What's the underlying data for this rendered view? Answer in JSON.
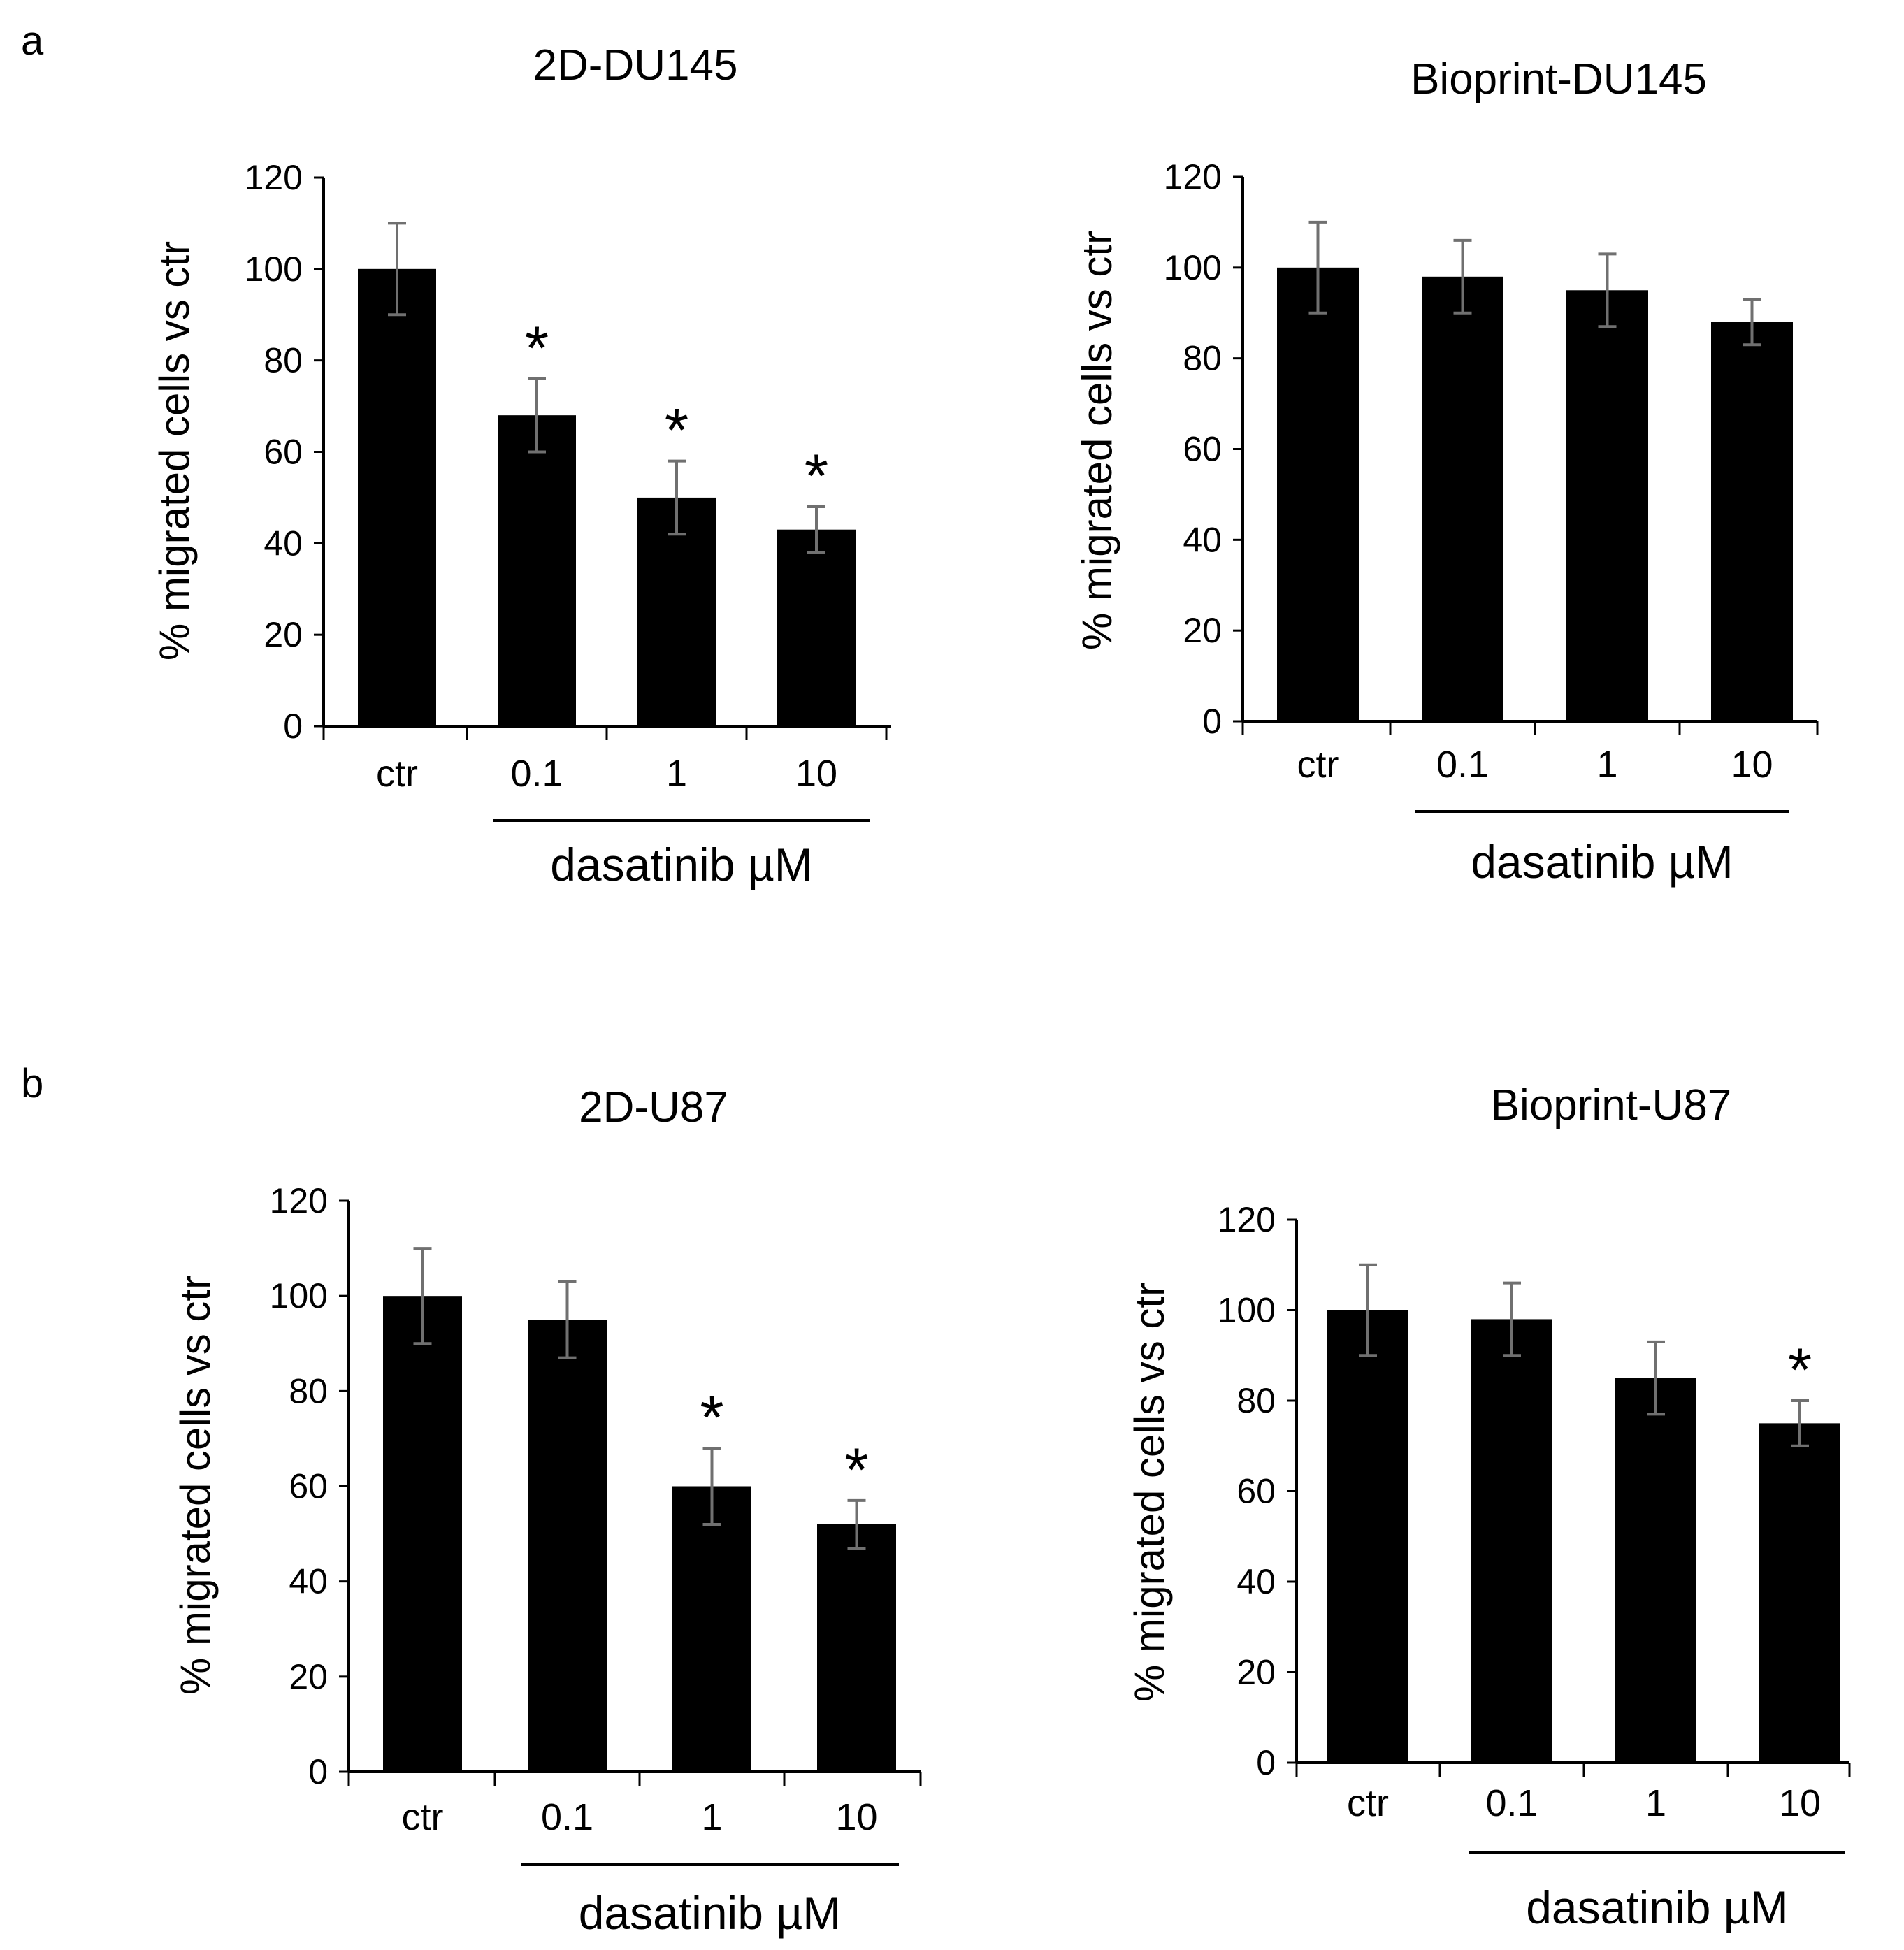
{
  "panel_labels": {
    "a": "a",
    "b": "b"
  },
  "chart_data": [
    {
      "type": "bar",
      "title": "2D-DU145",
      "categories": [
        "ctr",
        "0.1",
        "1",
        "10"
      ],
      "values": [
        100,
        68,
        50,
        43
      ],
      "errors": [
        10,
        8,
        8,
        5
      ],
      "significant": [
        "",
        "*",
        "*",
        "*"
      ],
      "ylabel": "% migrated cells vs ctr",
      "group_label": "dasatinib µM",
      "yticks": [
        "0",
        "20",
        "40",
        "60",
        "80",
        "100",
        "120"
      ],
      "ylim": [
        0,
        120
      ]
    },
    {
      "type": "bar",
      "title": "Bioprint-DU145",
      "categories": [
        "ctr",
        "0.1",
        "1",
        "10"
      ],
      "values": [
        100,
        98,
        95,
        88
      ],
      "errors": [
        10,
        8,
        8,
        5
      ],
      "significant": [
        "",
        "",
        "",
        ""
      ],
      "ylabel": "% migrated cells vs ctr",
      "group_label": "dasatinib µM",
      "yticks": [
        "0",
        "20",
        "40",
        "60",
        "80",
        "100",
        "120"
      ],
      "ylim": [
        0,
        120
      ]
    },
    {
      "type": "bar",
      "title": "2D-U87",
      "categories": [
        "ctr",
        "0.1",
        "1",
        "10"
      ],
      "values": [
        100,
        95,
        60,
        52
      ],
      "errors": [
        10,
        8,
        8,
        5
      ],
      "significant": [
        "",
        "",
        "*",
        "*"
      ],
      "ylabel": "% migrated cells vs ctr",
      "group_label": "dasatinib µM",
      "yticks": [
        "0",
        "20",
        "40",
        "60",
        "80",
        "100",
        "120"
      ],
      "ylim": [
        0,
        120
      ]
    },
    {
      "type": "bar",
      "title": "Bioprint-U87",
      "categories": [
        "ctr",
        "0.1",
        "1",
        "10"
      ],
      "values": [
        100,
        98,
        85,
        75
      ],
      "errors": [
        10,
        8,
        8,
        5
      ],
      "significant": [
        "",
        "",
        "",
        "*"
      ],
      "ylabel": "% migrated cells vs ctr",
      "group_label": "dasatinib µM",
      "yticks": [
        "0",
        "20",
        "40",
        "60",
        "80",
        "100",
        "120"
      ],
      "ylim": [
        0,
        120
      ]
    }
  ]
}
